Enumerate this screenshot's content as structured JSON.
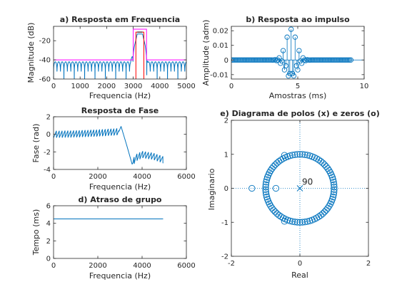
{
  "chart_data": [
    {
      "id": "freq",
      "type": "line",
      "title": "a) Resposta em Frequencia",
      "xlabel": "Frequencia (Hz)",
      "ylabel": "Magnitude (dB)",
      "xlim": [
        0,
        5000
      ],
      "ylim": [
        -60,
        -5
      ],
      "xticks": [
        0,
        1000,
        2000,
        3000,
        4000,
        5000
      ],
      "yticks": [
        -60,
        -40,
        -20
      ],
      "xtick_labels": [
        "0",
        "1000",
        "2000",
        "3000",
        "4000",
        "5000"
      ],
      "ytick_labels": [
        "-60",
        "-40",
        "-20"
      ],
      "series": [
        {
          "color": "#0072bd",
          "x": [
            0,
            2900,
            3050,
            3150,
            3350,
            3450,
            3550,
            5000
          ],
          "y": [
            -42,
            -42,
            -25,
            -13,
            -13,
            -25,
            -42,
            -42
          ],
          "ripple_db": 13,
          "ripple_period_hz": 130
        },
        {
          "color": "#ff00ff",
          "x": [
            0,
            3000,
            3000,
            3500,
            3500,
            5000
          ],
          "y": [
            -40,
            -40,
            -8,
            -8,
            -40,
            -40
          ]
        },
        {
          "color": "#ff0000",
          "x": [
            3100,
            3100,
            3400,
            3400
          ],
          "y": [
            -60,
            -11,
            -11,
            -60
          ]
        },
        {
          "color": "#000000",
          "x": [
            3150,
            3350
          ],
          "y": [
            -11,
            -11
          ]
        }
      ]
    },
    {
      "id": "imp",
      "type": "scatter",
      "title": "b) Resposta ao impulso",
      "xlabel": "Amostras (ms)",
      "ylabel": "Amplitude (adm)",
      "xlim": [
        0,
        10
      ],
      "ylim": [
        -0.013,
        0.023
      ],
      "xticks": [
        0,
        5,
        10
      ],
      "yticks": [
        -0.01,
        0,
        0.01,
        0.02
      ],
      "xtick_labels": [
        "0",
        "5",
        "10"
      ],
      "ytick_labels": [
        "-0.01",
        "0",
        "0.01",
        "0.02"
      ],
      "color": "#0072bd",
      "center_ms": 4.5,
      "step_ms": 0.1,
      "count": 91,
      "carrier_hz": 3250,
      "peak_amplitude": 0.021,
      "envelope_bandwidth_hz": 400
    },
    {
      "id": "phase",
      "type": "line",
      "title": "Resposta de Fase",
      "xlabel": "Frequencia (Hz)",
      "ylabel": "Fase (rad)",
      "xlim": [
        0,
        6000
      ],
      "ylim": [
        -4,
        2
      ],
      "xticks": [
        0,
        2000,
        4000,
        6000
      ],
      "yticks": [
        -4,
        -2,
        0,
        2
      ],
      "xtick_labels": [
        "0",
        "2000",
        "4000",
        "6000"
      ],
      "ytick_labels": [
        "-4",
        "-2",
        "0",
        "2"
      ],
      "color": "#0072bd",
      "x": [
        0,
        1000,
        2000,
        2950,
        3050,
        3300,
        3550,
        3700,
        4000,
        4500,
        4950
      ],
      "y": [
        0.0,
        0.05,
        0.15,
        0.3,
        0.9,
        -1.2,
        -3.4,
        -2.7,
        -2.3,
        -2.5,
        -2.9
      ],
      "ripple_rad": 0.4,
      "ripple_period_hz": 130
    },
    {
      "id": "delay",
      "type": "line",
      "title": "d) Atraso de grupo",
      "xlabel": "Frequencia (Hz)",
      "ylabel": "Tempo (ms)",
      "xlim": [
        0,
        6000
      ],
      "ylim": [
        0,
        6
      ],
      "xticks": [
        0,
        2000,
        4000,
        6000
      ],
      "yticks": [
        0,
        2,
        4,
        6
      ],
      "xtick_labels": [
        "0",
        "2000",
        "4000",
        "6000"
      ],
      "ytick_labels": [
        "0",
        "2",
        "4",
        "6"
      ],
      "color": "#0072bd",
      "x": [
        0,
        4950
      ],
      "y": [
        4.5,
        4.5
      ]
    },
    {
      "id": "pz",
      "type": "scatter",
      "title": "e) Diagrama de polos (x) e zeros (o)",
      "xlabel": "Real",
      "ylabel": "Imaginario",
      "xlim": [
        -2,
        2
      ],
      "ylim": [
        -2,
        2
      ],
      "xticks": [
        -2,
        0,
        2
      ],
      "yticks": [
        -2,
        -1,
        0,
        1,
        2
      ],
      "xtick_labels": [
        "-2",
        "0",
        "2"
      ],
      "ytick_labels": [
        "-2",
        "-1",
        "0",
        "1",
        "2"
      ],
      "color": "#0072bd",
      "annotation": "90",
      "poles": [
        {
          "re": 0,
          "im": 0,
          "multiplicity": 90
        }
      ],
      "zeros_on_unit_circle": 86,
      "extra_zeros": [
        {
          "re": -1.4,
          "im": 0
        },
        {
          "re": -0.7,
          "im": 0
        },
        {
          "re": -0.45,
          "im": 0.97
        },
        {
          "re": -0.45,
          "im": -0.97
        }
      ]
    }
  ]
}
